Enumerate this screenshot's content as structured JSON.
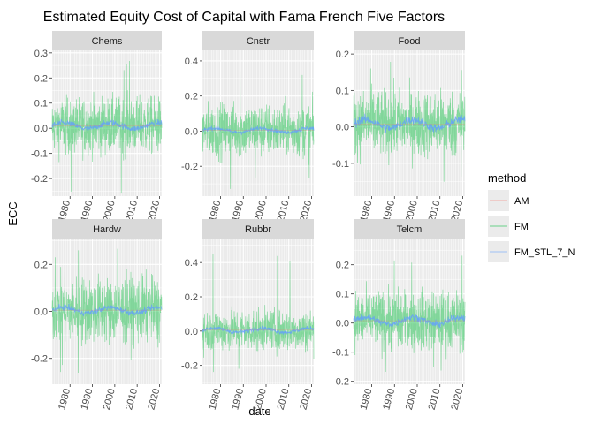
{
  "chart_data": {
    "type": "line",
    "title": "Estimated Equity Cost of Capital with Fama French Five Factors",
    "xlabel": "date",
    "ylabel": "ECC",
    "x_range": [
      1972,
      2021
    ],
    "x_ticks": [
      "1980",
      "1990",
      "2000",
      "2010",
      "2020"
    ],
    "legend": {
      "title": "method",
      "placement": "right",
      "entries": [
        {
          "name": "AM",
          "color": "#F8766D"
        },
        {
          "name": "FM",
          "color": "#00BA38"
        },
        {
          "name": "FM_STL_7_N",
          "color": "#619CFF"
        }
      ]
    },
    "panels": [
      {
        "name": "Chems",
        "ylim": [
          -0.27,
          0.31
        ],
        "yticks": [
          -0.2,
          -0.1,
          0.0,
          0.1,
          0.2,
          0.3
        ],
        "ytick_labels": [
          "-0.2",
          "-0.1",
          "0.0",
          "0.1",
          "0.2",
          "0.3"
        ],
        "fm_volatility": 0.055,
        "fm_range": [
          -0.26,
          0.28
        ],
        "stl_level": 0.01
      },
      {
        "name": "Cnstr",
        "ylim": [
          -0.37,
          0.46
        ],
        "yticks": [
          -0.2,
          0.0,
          0.2,
          0.4
        ],
        "ytick_labels": [
          "-0.2",
          "0.0",
          "0.2",
          "0.4"
        ],
        "fm_volatility": 0.075,
        "fm_range": [
          -0.34,
          0.41
        ],
        "stl_level": 0.005
      },
      {
        "name": "Food",
        "ylim": [
          -0.19,
          0.21
        ],
        "yticks": [
          -0.1,
          0.0,
          0.1,
          0.2
        ],
        "ytick_labels": [
          "-0.1",
          "0.0",
          "0.1",
          "0.2"
        ],
        "fm_volatility": 0.045,
        "fm_range": [
          -0.18,
          0.18
        ],
        "stl_level": 0.008
      },
      {
        "name": "Hardw",
        "ylim": [
          -0.31,
          0.31
        ],
        "yticks": [
          -0.2,
          0.0,
          0.2
        ],
        "ytick_labels": [
          "-0.2",
          "0.0",
          "0.2"
        ],
        "fm_volatility": 0.07,
        "fm_range": [
          -0.28,
          0.3
        ],
        "stl_level": 0.005
      },
      {
        "name": "Rubbr",
        "ylim": [
          -0.31,
          0.54
        ],
        "yticks": [
          -0.2,
          0.0,
          0.2,
          0.4
        ],
        "ytick_labels": [
          "-0.2",
          "0.0",
          "0.2",
          "0.4"
        ],
        "fm_volatility": 0.06,
        "fm_range": [
          -0.28,
          0.5
        ],
        "stl_level": 0.005
      },
      {
        "name": "Telcm",
        "ylim": [
          -0.21,
          0.29
        ],
        "yticks": [
          -0.2,
          -0.1,
          0.0,
          0.1,
          0.2
        ],
        "ytick_labels": [
          "-0.2",
          "-0.1",
          "0.0",
          "0.1",
          "0.2"
        ],
        "fm_volatility": 0.05,
        "fm_range": [
          -0.18,
          0.27
        ],
        "stl_level": 0.008
      }
    ]
  }
}
